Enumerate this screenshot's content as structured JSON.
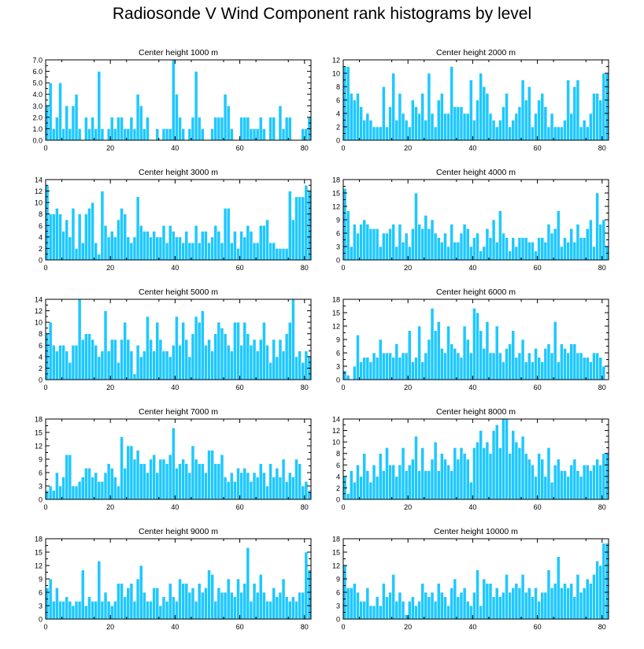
{
  "page_title": "Radiosonde V Wind Component rank histograms by level",
  "style": {
    "bar_color": "#1ec8ff",
    "bar_edge": "#ffffff",
    "frame_color": "#000000"
  },
  "chart_data": [
    {
      "type": "bar",
      "title": "Center height 1000 m",
      "xlabel": "",
      "ylabel": "",
      "xlim": [
        0,
        82
      ],
      "ylim": [
        0,
        7
      ],
      "yticks": [
        "0.0",
        "1.0",
        "2.0",
        "3.0",
        "4.0",
        "5.0",
        "6.0",
        "7.0"
      ],
      "xticks": [
        "0",
        "20",
        "40",
        "60",
        "80"
      ],
      "values": [
        3,
        5,
        1,
        2,
        5,
        1,
        3,
        1,
        3,
        4,
        1,
        0,
        2,
        1,
        2,
        1,
        6,
        1,
        0,
        1,
        2,
        1,
        2,
        2,
        1,
        1,
        2,
        1,
        4,
        3,
        1,
        2,
        0,
        0,
        1,
        0,
        1,
        1,
        1,
        7,
        4,
        2,
        1,
        0,
        1,
        2,
        6,
        2,
        1,
        0,
        0,
        1,
        2,
        2,
        2,
        4,
        3,
        1,
        0,
        0,
        2,
        2,
        2,
        1,
        1,
        1,
        2,
        1,
        0,
        2,
        2,
        0,
        3,
        1,
        2,
        2,
        0,
        0,
        0,
        1,
        1,
        2
      ]
    },
    {
      "type": "bar",
      "title": "Center height 2000 m",
      "xlabel": "",
      "ylabel": "",
      "xlim": [
        0,
        82
      ],
      "ylim": [
        0,
        12
      ],
      "yticks": [
        "0",
        "2",
        "4",
        "6",
        "8",
        "10",
        "12"
      ],
      "xticks": [
        "0",
        "20",
        "40",
        "60",
        "80"
      ],
      "values": [
        11,
        11,
        7,
        6,
        7,
        5,
        3,
        4,
        3,
        2,
        2,
        2,
        8,
        2,
        5,
        10,
        3,
        7,
        4,
        3,
        2,
        6,
        5,
        4,
        7,
        3,
        10,
        4,
        2,
        6,
        7,
        4,
        4,
        11,
        5,
        5,
        5,
        4,
        4,
        9,
        3,
        6,
        10,
        8,
        7,
        4,
        3,
        2,
        3,
        5,
        7,
        2,
        3,
        4,
        5,
        9,
        6,
        8,
        2,
        4,
        6,
        7,
        5,
        2,
        4,
        2,
        2,
        2,
        3,
        9,
        4,
        8,
        9,
        2,
        3,
        2,
        4,
        7,
        7,
        6,
        10,
        10
      ]
    },
    {
      "type": "bar",
      "title": "Center height 3000 m",
      "xlabel": "",
      "ylabel": "",
      "xlim": [
        0,
        82
      ],
      "ylim": [
        0,
        14
      ],
      "yticks": [
        "0",
        "2",
        "4",
        "6",
        "8",
        "10",
        "12",
        "14"
      ],
      "xticks": [
        "0",
        "20",
        "40",
        "60",
        "80"
      ],
      "values": [
        13,
        8,
        8,
        9,
        8,
        5,
        7,
        4,
        9,
        2,
        8,
        3,
        8,
        9,
        10,
        3,
        1,
        12,
        6,
        4,
        5,
        4,
        7,
        9,
        8,
        4,
        3,
        4,
        11,
        6,
        5,
        5,
        4,
        5,
        4,
        4,
        6,
        3,
        6,
        5,
        4,
        4,
        3,
        5,
        3,
        3,
        6,
        3,
        5,
        5,
        3,
        4,
        6,
        5,
        3,
        9,
        9,
        3,
        5,
        2,
        5,
        4,
        6,
        5,
        3,
        3,
        6,
        6,
        7,
        3,
        3,
        2,
        2,
        2,
        2,
        12,
        7,
        11,
        11,
        11,
        13,
        12
      ]
    },
    {
      "type": "bar",
      "title": "Center height 4000 m",
      "xlabel": "",
      "ylabel": "",
      "xlim": [
        0,
        82
      ],
      "ylim": [
        0,
        18
      ],
      "yticks": [
        "0",
        "3",
        "6",
        "9",
        "12",
        "15",
        "18"
      ],
      "xticks": [
        "0",
        "20",
        "40",
        "60",
        "80"
      ],
      "values": [
        16,
        11,
        3,
        8,
        6,
        8,
        9,
        8,
        7,
        7,
        7,
        3,
        6,
        6,
        7,
        8,
        3,
        8,
        4,
        6,
        3,
        7,
        15,
        8,
        7,
        10,
        7,
        9,
        6,
        5,
        4,
        6,
        3,
        8,
        4,
        4,
        6,
        8,
        7,
        3,
        5,
        6,
        2,
        3,
        7,
        5,
        9,
        4,
        11,
        6,
        5,
        2,
        5,
        3,
        5,
        5,
        5,
        4,
        4,
        2,
        5,
        5,
        4,
        8,
        6,
        7,
        11,
        3,
        5,
        4,
        7,
        4,
        8,
        5,
        5,
        7,
        9,
        3,
        15,
        8,
        9,
        3
      ]
    },
    {
      "type": "bar",
      "title": "Center height 5000 m",
      "xlabel": "",
      "ylabel": "",
      "xlim": [
        0,
        82
      ],
      "ylim": [
        0,
        14
      ],
      "yticks": [
        "0",
        "2",
        "4",
        "6",
        "8",
        "10",
        "12",
        "14"
      ],
      "xticks": [
        "0",
        "20",
        "40",
        "60",
        "80"
      ],
      "values": [
        8,
        10,
        6,
        5,
        6,
        6,
        5,
        3,
        6,
        6,
        14,
        7,
        8,
        8,
        7,
        6,
        4,
        5,
        12,
        5,
        7,
        7,
        3,
        7,
        10,
        7,
        5,
        1,
        6,
        4,
        5,
        11,
        7,
        5,
        10,
        7,
        5,
        5,
        4,
        6,
        11,
        6,
        10,
        7,
        4,
        8,
        11,
        10,
        12,
        6,
        7,
        5,
        8,
        10,
        9,
        8,
        6,
        5,
        10,
        10,
        6,
        10,
        8,
        6,
        7,
        5,
        7,
        10,
        6,
        3,
        7,
        4,
        7,
        5,
        8,
        10,
        14,
        4,
        5,
        3,
        5,
        4
      ]
    },
    {
      "type": "bar",
      "title": "Center height 6000 m",
      "xlabel": "",
      "ylabel": "",
      "xlim": [
        0,
        82
      ],
      "ylim": [
        0,
        18
      ],
      "yticks": [
        "0",
        "3",
        "6",
        "9",
        "12",
        "15",
        "18"
      ],
      "xticks": [
        "0",
        "20",
        "40",
        "60",
        "80"
      ],
      "values": [
        2,
        1,
        0,
        3,
        10,
        4,
        5,
        5,
        4,
        6,
        5,
        9,
        6,
        6,
        6,
        5,
        8,
        5,
        6,
        6,
        11,
        4,
        5,
        12,
        4,
        6,
        9,
        16,
        11,
        13,
        7,
        6,
        12,
        8,
        7,
        6,
        5,
        12,
        9,
        6,
        16,
        15,
        11,
        7,
        13,
        6,
        6,
        12,
        6,
        4,
        7,
        8,
        11,
        5,
        6,
        9,
        4,
        6,
        4,
        7,
        5,
        4,
        7,
        8,
        6,
        13,
        4,
        8,
        7,
        6,
        8,
        8,
        6,
        6,
        5,
        5,
        4,
        6,
        6,
        5,
        3
      ]
    },
    {
      "type": "bar",
      "title": "Center height 7000 m",
      "xlabel": "",
      "ylabel": "",
      "xlim": [
        0,
        82
      ],
      "ylim": [
        0,
        18
      ],
      "yticks": [
        "0",
        "3",
        "6",
        "9",
        "12",
        "15",
        "18"
      ],
      "xticks": [
        "0",
        "20",
        "40",
        "60",
        "80"
      ],
      "values": [
        2,
        3,
        2,
        6,
        3,
        5,
        10,
        10,
        3,
        3,
        4,
        5,
        7,
        7,
        5,
        6,
        4,
        4,
        6,
        8,
        7,
        5,
        3,
        14,
        7,
        12,
        12,
        9,
        11,
        8,
        8,
        6,
        9,
        10,
        6,
        9,
        9,
        8,
        10,
        16,
        7,
        8,
        9,
        8,
        6,
        12,
        9,
        8,
        8,
        6,
        11,
        11,
        8,
        8,
        10,
        5,
        4,
        6,
        4,
        7,
        6,
        7,
        6,
        4,
        6,
        5,
        8,
        6,
        3,
        8,
        5,
        7,
        5,
        9,
        4,
        6,
        5,
        9,
        8,
        3,
        4,
        2
      ]
    },
    {
      "type": "bar",
      "title": "Center height 8000 m",
      "xlabel": "",
      "ylabel": "",
      "xlim": [
        0,
        82
      ],
      "ylim": [
        0,
        14
      ],
      "yticks": [
        "0",
        "2",
        "4",
        "6",
        "8",
        "10",
        "12",
        "14"
      ],
      "xticks": [
        "0",
        "20",
        "40",
        "60",
        "80"
      ],
      "values": [
        4,
        1,
        5,
        3,
        6,
        4,
        8,
        5,
        3,
        6,
        4,
        8,
        5,
        9,
        6,
        6,
        4,
        6,
        9,
        5,
        6,
        7,
        11,
        5,
        9,
        5,
        5,
        7,
        10,
        5,
        8,
        7,
        6,
        5,
        9,
        7,
        9,
        8,
        7,
        3,
        9,
        10,
        12,
        9,
        10,
        8,
        12,
        13,
        9,
        14,
        14,
        8,
        12,
        10,
        9,
        11,
        8,
        7,
        6,
        4,
        8,
        7,
        4,
        9,
        3,
        6,
        7,
        5,
        5,
        4,
        6,
        7,
        5,
        4,
        6,
        6,
        5,
        6,
        7,
        6,
        8,
        8
      ]
    },
    {
      "type": "bar",
      "title": "Center height 9000 m",
      "xlabel": "",
      "ylabel": "",
      "xlim": [
        0,
        82
      ],
      "ylim": [
        0,
        18
      ],
      "yticks": [
        "0",
        "3",
        "6",
        "9",
        "12",
        "15",
        "18"
      ],
      "xticks": [
        "0",
        "20",
        "40",
        "60",
        "80"
      ],
      "values": [
        7,
        9,
        4,
        7,
        4,
        4,
        5,
        4,
        3,
        4,
        4,
        11,
        3,
        5,
        4,
        4,
        13,
        4,
        6,
        4,
        3,
        4,
        8,
        8,
        5,
        7,
        8,
        4,
        9,
        12,
        6,
        4,
        4,
        7,
        7,
        3,
        5,
        4,
        8,
        5,
        4,
        9,
        8,
        8,
        6,
        7,
        4,
        8,
        6,
        7,
        11,
        10,
        4,
        7,
        6,
        6,
        9,
        6,
        5,
        9,
        6,
        8,
        16,
        4,
        8,
        6,
        10,
        6,
        4,
        4,
        7,
        5,
        6,
        9,
        5,
        4,
        5,
        4,
        6,
        6,
        15,
        11
      ]
    },
    {
      "type": "bar",
      "title": "Center height 10000 m",
      "xlabel": "",
      "ylabel": "",
      "xlim": [
        0,
        82
      ],
      "ylim": [
        0,
        18
      ],
      "yticks": [
        "0",
        "3",
        "6",
        "9",
        "12",
        "15",
        "18"
      ],
      "xticks": [
        "0",
        "20",
        "40",
        "60",
        "80"
      ],
      "values": [
        12,
        7,
        7,
        8,
        6,
        4,
        4,
        7,
        3,
        3,
        5,
        3,
        8,
        5,
        6,
        10,
        4,
        6,
        4,
        1,
        4,
        5,
        3,
        4,
        8,
        6,
        5,
        6,
        4,
        8,
        6,
        5,
        3,
        7,
        9,
        5,
        6,
        7,
        4,
        3,
        6,
        11,
        3,
        9,
        8,
        8,
        5,
        7,
        5,
        6,
        10,
        6,
        7,
        8,
        7,
        10,
        6,
        7,
        5,
        7,
        4,
        6,
        6,
        11,
        7,
        8,
        14,
        7,
        8,
        7,
        8,
        5,
        10,
        6,
        7,
        9,
        8,
        10,
        13,
        12,
        17,
        17
      ]
    }
  ]
}
